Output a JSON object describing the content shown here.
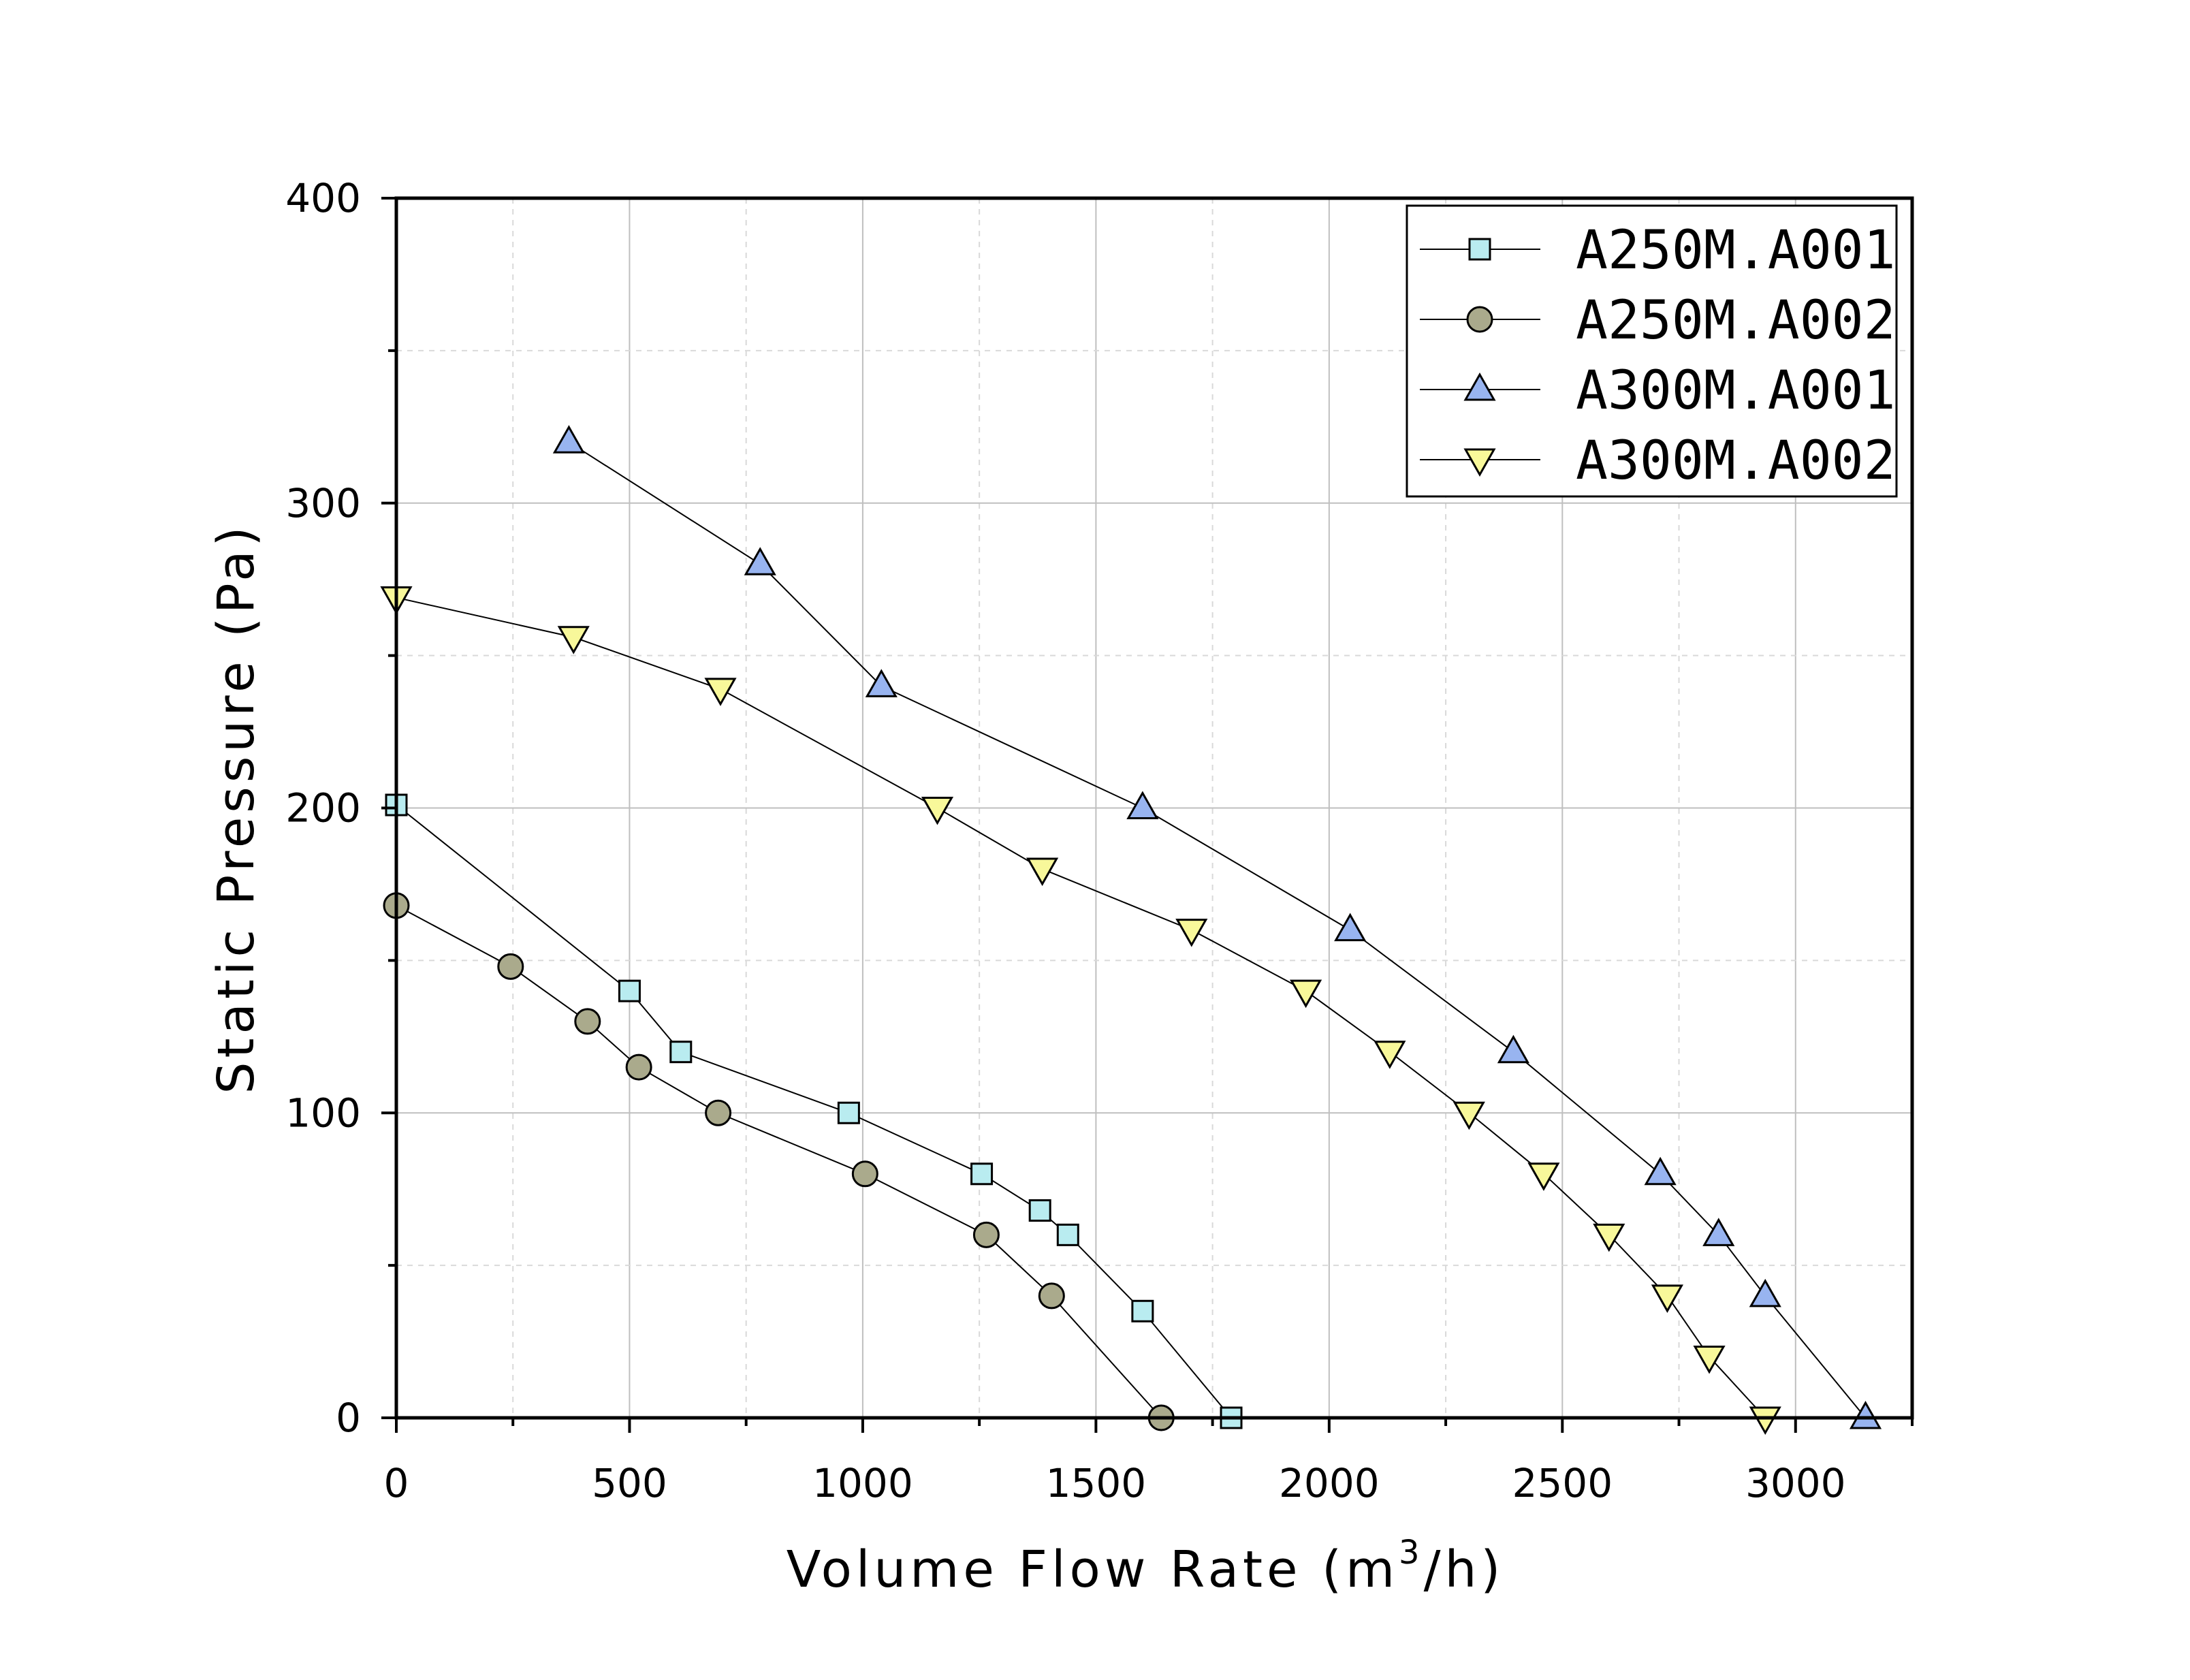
{
  "chart_data": {
    "type": "line",
    "xlabel": "Volume Flow Rate (m3/h)",
    "xlabel_parts": {
      "main": "Volume Flow Rate (m",
      "superscript": "3",
      "tail": "/h)"
    },
    "ylabel": "Static Pressure (Pa)",
    "xlim": [
      0,
      3250
    ],
    "ylim": [
      0,
      400
    ],
    "x_ticks": [
      0,
      500,
      1000,
      1500,
      2000,
      2500,
      3000
    ],
    "y_ticks": [
      0,
      100,
      200,
      300,
      400
    ],
    "x_minor_ticks": [
      250,
      750,
      1250,
      1750,
      2250,
      2750,
      3250
    ],
    "y_minor_ticks": [
      50,
      150,
      250,
      350
    ],
    "x_tick_labels": [
      "0",
      "500",
      "1000",
      "1500",
      "2000",
      "2500",
      "3000"
    ],
    "y_tick_labels": [
      "0",
      "100",
      "200",
      "300",
      "400"
    ],
    "grid": true,
    "legend_position": "top-right",
    "series": [
      {
        "name": "A250M.A001",
        "marker": "square",
        "color": "#b9ecf0",
        "x": [
          0,
          500,
          610,
          970,
          1255,
          1380,
          1440,
          1600,
          1790
        ],
        "y": [
          201,
          140,
          120,
          100,
          80,
          68,
          60,
          35,
          0
        ]
      },
      {
        "name": "A250M.A002",
        "marker": "circle",
        "color": "#aaaa8c",
        "x": [
          0,
          245,
          410,
          520,
          690,
          1005,
          1265,
          1405,
          1640
        ],
        "y": [
          168,
          148,
          130,
          115,
          100,
          80,
          60,
          40,
          0
        ]
      },
      {
        "name": "A300M.A001",
        "marker": "triangle-up",
        "color": "#98b4f0",
        "x": [
          370,
          780,
          1040,
          1600,
          2045,
          2395,
          2710,
          2835,
          2935,
          3150
        ],
        "y": [
          320,
          280,
          240,
          200,
          160,
          120,
          80,
          60,
          40,
          0
        ]
      },
      {
        "name": "A300M.A002",
        "marker": "triangle-down",
        "color": "#f8f89a",
        "x": [
          0,
          380,
          695,
          1160,
          1385,
          1705,
          1950,
          2130,
          2300,
          2460,
          2600,
          2725,
          2815,
          2935
        ],
        "y": [
          269,
          256,
          239,
          200,
          180,
          160,
          140,
          120,
          100,
          80,
          60,
          40,
          20,
          0
        ]
      }
    ]
  }
}
